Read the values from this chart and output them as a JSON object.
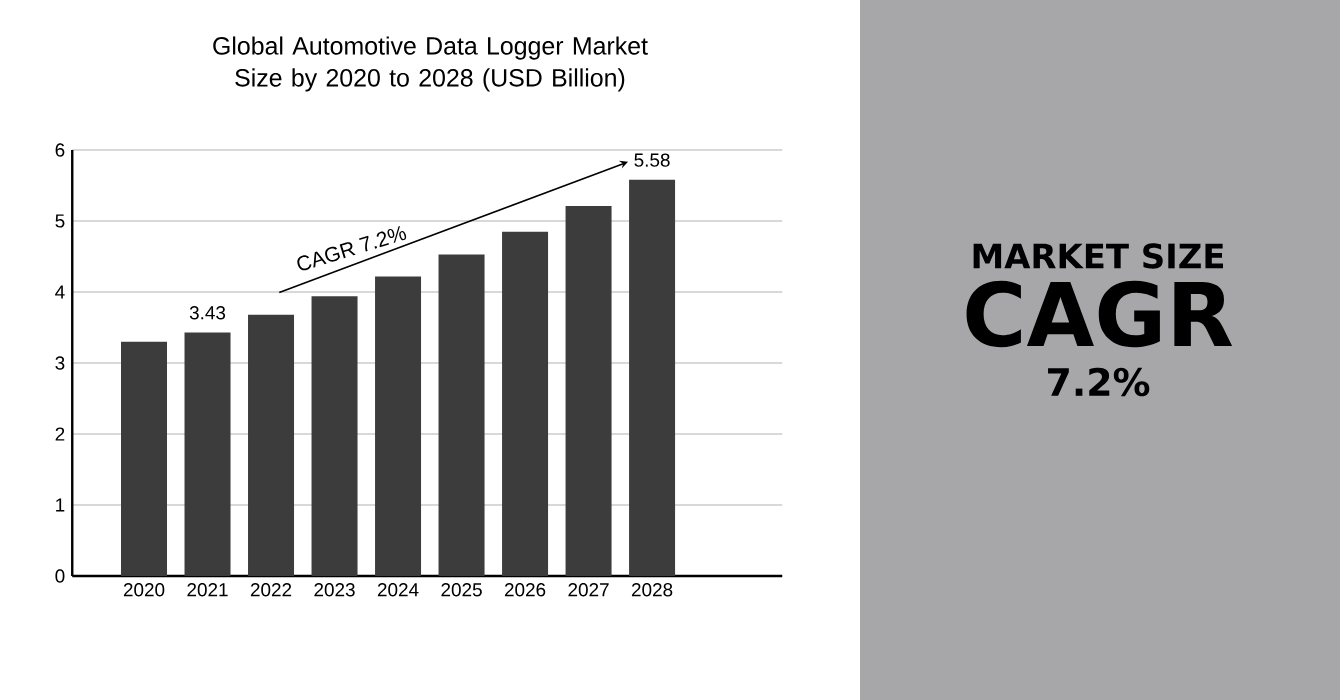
{
  "chart_data": [
    {
      "type": "bar",
      "title": "Global Automotive Data Logger Market Size by 2020 to 2028 (USD Billion)",
      "categories": [
        "2020",
        "2021",
        "2022",
        "2023",
        "2024",
        "2025",
        "2026",
        "2027",
        "2028"
      ],
      "values": [
        3.3,
        3.43,
        3.68,
        3.94,
        4.22,
        4.53,
        4.85,
        5.21,
        5.58
      ],
      "value_labels": [
        null,
        "3.43",
        null,
        null,
        null,
        null,
        null,
        null,
        "5.58"
      ],
      "color": "#3c3c3c",
      "ylim": [
        0,
        6
      ],
      "yticks": [
        0,
        1,
        2,
        3,
        4,
        5,
        6
      ],
      "grid": "y",
      "annotations": [
        "CAGR 7.2%"
      ]
    },
    {
      "type": "other",
      "title": "MARKET SIZE",
      "subtitle": "CAGR",
      "annotations": [
        "7.2%"
      ]
    }
  ]
}
